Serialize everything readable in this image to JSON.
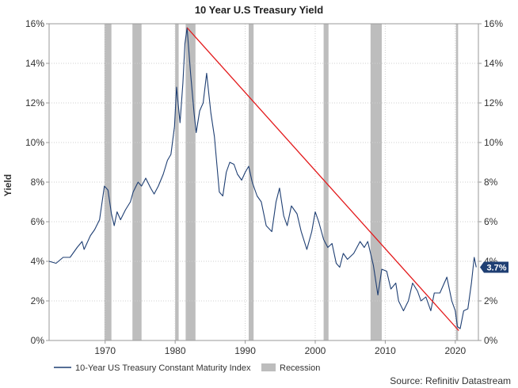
{
  "chart_data": {
    "type": "line",
    "title": "10 Year U.S Treasury Yield",
    "ylabel": "Yield",
    "xlabel": "",
    "xlim": [
      1962,
      2023.3
    ],
    "ylim": [
      0,
      16
    ],
    "x_ticks": [
      {
        "value": 1970,
        "label": "1970"
      },
      {
        "value": 1980,
        "label": "1980"
      },
      {
        "value": 1990,
        "label": "1990"
      },
      {
        "value": 2000,
        "label": "2000"
      },
      {
        "value": 2010,
        "label": "2010"
      },
      {
        "value": 2020,
        "label": "2020"
      }
    ],
    "y_ticks": [
      {
        "value": 0,
        "label": "0%"
      },
      {
        "value": 2,
        "label": "2%"
      },
      {
        "value": 4,
        "label": "4%"
      },
      {
        "value": 6,
        "label": "6%"
      },
      {
        "value": 8,
        "label": "8%"
      },
      {
        "value": 10,
        "label": "10%"
      },
      {
        "value": 12,
        "label": "12%"
      },
      {
        "value": 14,
        "label": "14%"
      },
      {
        "value": 16,
        "label": "16%"
      }
    ],
    "series": [
      {
        "name": "10-Year US Treasury Constant Maturity Index",
        "color": "#1f3f73",
        "x": [
          1962.0,
          1963.0,
          1964.0,
          1965.0,
          1966.0,
          1966.7,
          1967.0,
          1967.9,
          1968.5,
          1969.2,
          1969.9,
          1970.4,
          1970.9,
          1971.3,
          1971.7,
          1972.2,
          1972.9,
          1973.6,
          1974.0,
          1974.7,
          1975.2,
          1975.8,
          1976.5,
          1977.0,
          1977.6,
          1978.3,
          1978.9,
          1979.4,
          1979.9,
          1980.2,
          1980.7,
          1981.1,
          1981.4,
          1981.7,
          1982.2,
          1982.7,
          1983.0,
          1983.5,
          1984.0,
          1984.5,
          1985.1,
          1985.6,
          1986.3,
          1986.8,
          1987.3,
          1987.8,
          1988.4,
          1988.9,
          1989.5,
          1990.0,
          1990.5,
          1991.0,
          1991.7,
          1992.3,
          1993.0,
          1993.8,
          1994.4,
          1994.9,
          1995.5,
          1996.0,
          1996.6,
          1997.4,
          1998.0,
          1998.8,
          1999.5,
          2000.0,
          2000.5,
          2001.2,
          2001.8,
          2002.4,
          2003.0,
          2003.5,
          2004.0,
          2004.6,
          2005.5,
          2006.4,
          2007.0,
          2007.5,
          2008.3,
          2008.95,
          2009.5,
          2010.2,
          2010.8,
          2011.5,
          2011.9,
          2012.6,
          2013.3,
          2013.9,
          2014.6,
          2015.1,
          2015.8,
          2016.5,
          2017.0,
          2017.8,
          2018.8,
          2019.5,
          2020.0,
          2020.3,
          2020.7,
          2021.2,
          2021.8,
          2022.3,
          2022.7,
          2023.0
        ],
        "y": [
          4.0,
          3.9,
          4.2,
          4.2,
          4.7,
          5.0,
          4.6,
          5.3,
          5.6,
          6.1,
          7.8,
          7.6,
          6.4,
          5.8,
          6.5,
          6.1,
          6.6,
          7.0,
          7.5,
          8.0,
          7.8,
          8.2,
          7.7,
          7.4,
          7.8,
          8.4,
          9.1,
          9.4,
          10.8,
          12.8,
          11.0,
          13.0,
          15.0,
          15.8,
          13.5,
          11.5,
          10.5,
          11.6,
          12.0,
          13.5,
          11.5,
          10.3,
          7.5,
          7.3,
          8.5,
          9.0,
          8.9,
          8.4,
          8.1,
          8.5,
          8.8,
          8.0,
          7.3,
          7.0,
          5.8,
          5.5,
          7.0,
          7.7,
          6.3,
          5.8,
          6.8,
          6.4,
          5.5,
          4.6,
          5.5,
          6.5,
          6.0,
          5.1,
          4.7,
          4.9,
          3.9,
          3.7,
          4.4,
          4.1,
          4.4,
          5.0,
          4.7,
          5.0,
          3.8,
          2.3,
          3.6,
          3.5,
          2.6,
          2.9,
          2.0,
          1.5,
          2.0,
          2.9,
          2.5,
          2.0,
          2.2,
          1.5,
          2.4,
          2.4,
          3.2,
          2.0,
          1.5,
          0.7,
          0.6,
          1.5,
          1.6,
          2.9,
          4.2,
          3.7
        ]
      },
      {
        "name": "Trend",
        "color": "#e31a1c",
        "x": [
          1981.7,
          2020.5
        ],
        "y": [
          15.8,
          0.5
        ]
      }
    ],
    "recessions": [
      {
        "name": "Recession",
        "start": 1969.9,
        "end": 1970.9
      },
      {
        "name": "Recession",
        "start": 1973.9,
        "end": 1975.2
      },
      {
        "name": "Recession",
        "start": 1980.0,
        "end": 1980.5
      },
      {
        "name": "Recession",
        "start": 1981.5,
        "end": 1982.9
      },
      {
        "name": "Recession",
        "start": 1990.5,
        "end": 1991.2
      },
      {
        "name": "Recession",
        "start": 2001.2,
        "end": 2001.9
      },
      {
        "name": "Recession",
        "start": 2007.9,
        "end": 2009.5
      },
      {
        "name": "Recession",
        "start": 2020.1,
        "end": 2020.4
      }
    ],
    "last_value_label": "3.7%",
    "last_value": 3.7,
    "legend": [
      {
        "label": "10-Year US Treasury Constant Maturity Index",
        "kind": "line",
        "color": "#1f3f73"
      },
      {
        "label": "Recession",
        "kind": "box",
        "color": "#bdbdbd"
      }
    ],
    "grid": true,
    "source": "Source: Refinitiv Datastream",
    "colors": {
      "recession": "#bdbdbd",
      "badge": "#1f3f73",
      "grid": "#cfcfcf",
      "axis": "#999999"
    }
  }
}
